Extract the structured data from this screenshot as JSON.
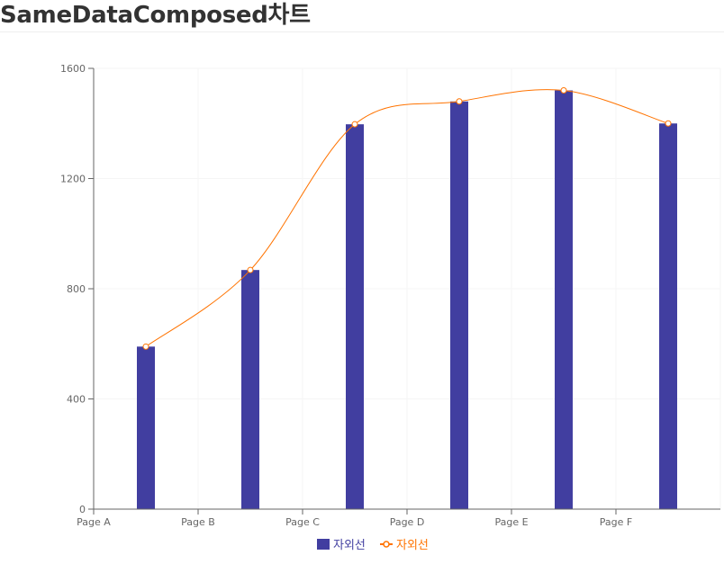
{
  "page": {
    "title": "SameDataComposed차트"
  },
  "colors": {
    "bar": "#413ea0",
    "line": "#ff7300",
    "axis": "#666666",
    "grid": "#f5f5f5"
  },
  "chart_data": {
    "type": "bar",
    "categories": [
      "Page A",
      "Page B",
      "Page C",
      "Page D",
      "Page E",
      "Page F"
    ],
    "x_ticks": [
      "Page A",
      "Page B",
      "Page C",
      "Page D",
      "Page E",
      "Page F"
    ],
    "y_ticks": [
      0,
      400,
      800,
      1200,
      1600
    ],
    "ylim": [
      0,
      1600
    ],
    "grid": true,
    "legend_position": "bottom-center",
    "series": [
      {
        "name": "자외선",
        "kind": "bar",
        "color": "#413ea0",
        "values": [
          590,
          868,
          1397,
          1480,
          1520,
          1400
        ]
      },
      {
        "name": "자외선",
        "kind": "line",
        "color": "#ff7300",
        "values": [
          590,
          868,
          1397,
          1480,
          1520,
          1400
        ]
      }
    ]
  }
}
